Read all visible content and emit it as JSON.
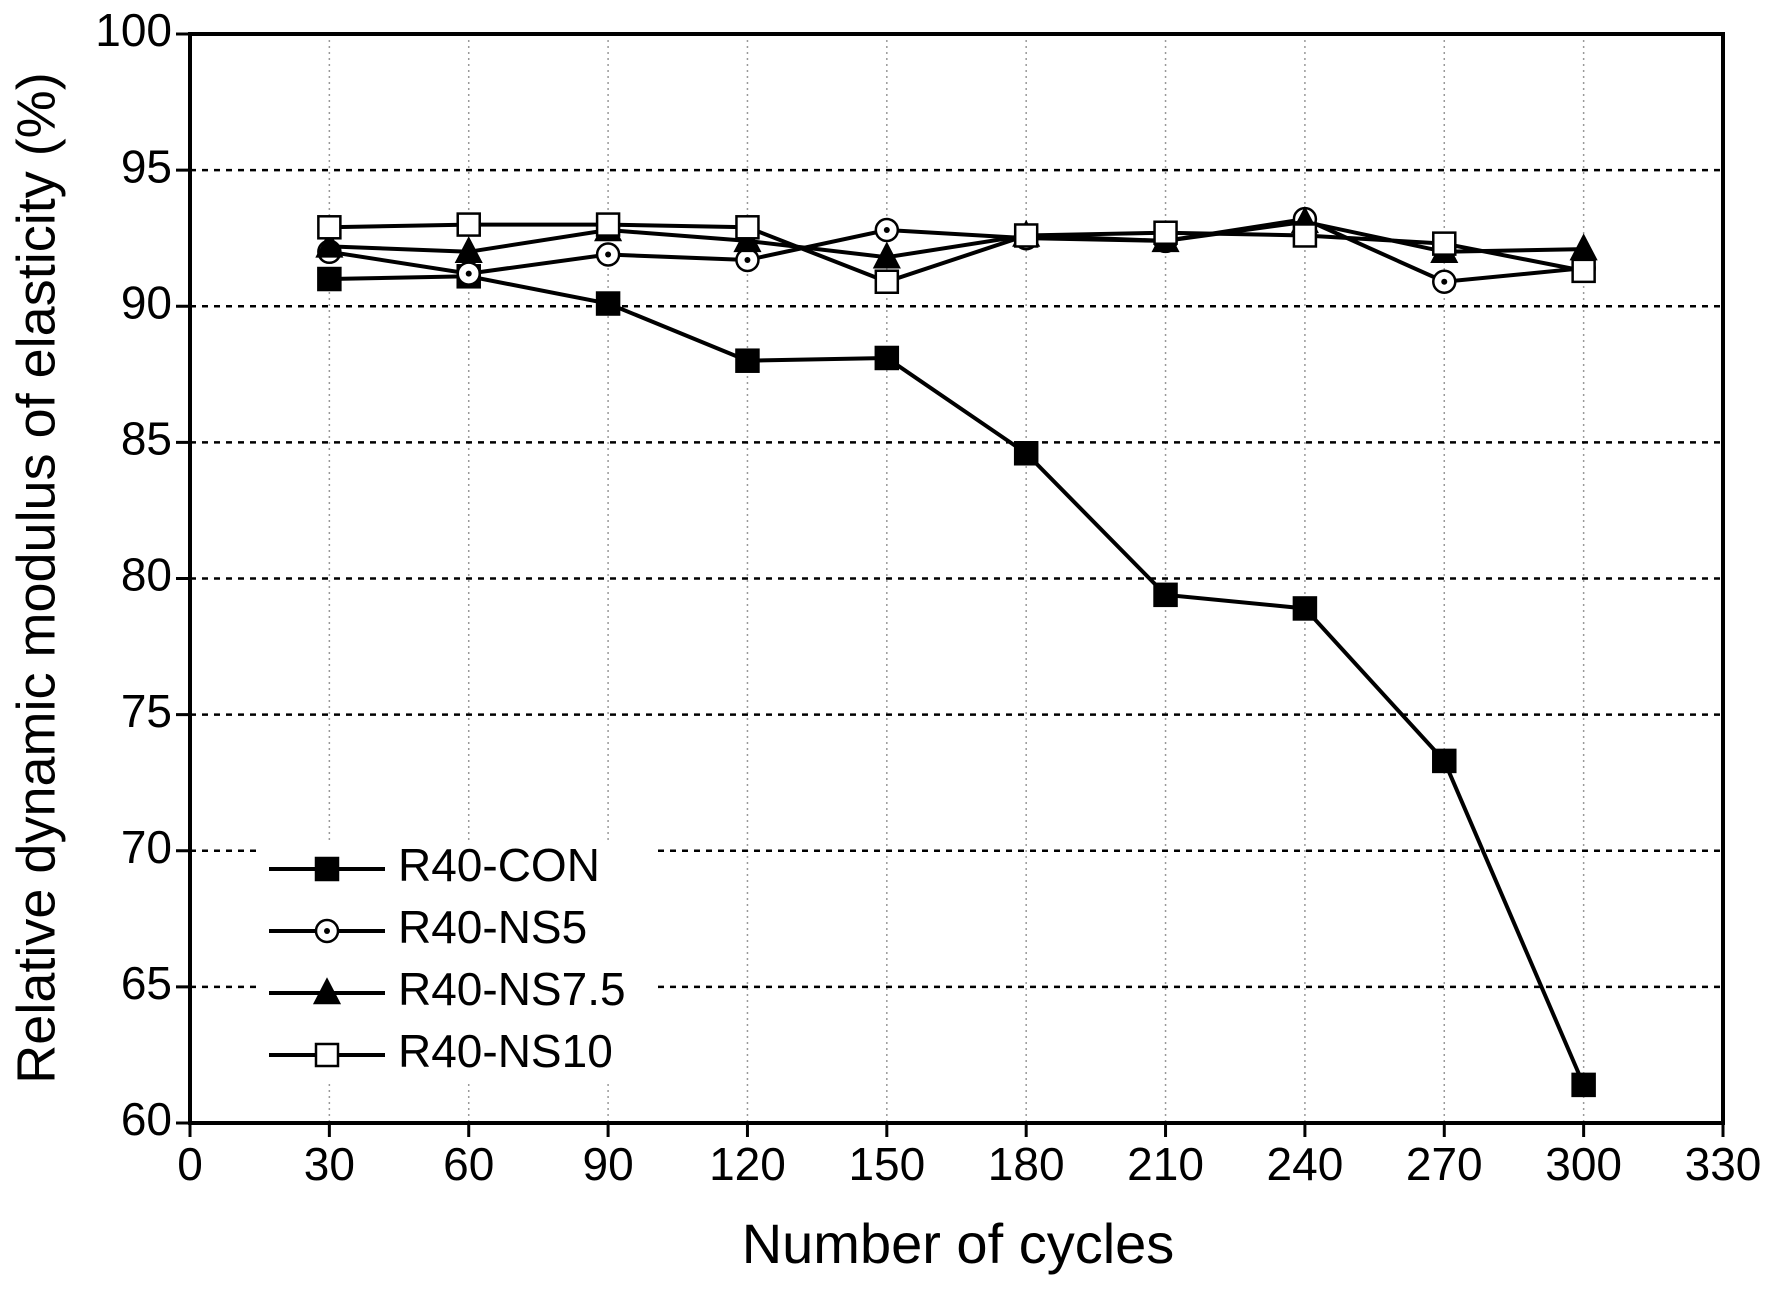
{
  "chart_data": {
    "type": "line",
    "x_label": "Number of cycles",
    "y_label": "Relative dynamic modulus of elasticity (%)",
    "x": [
      30,
      60,
      90,
      120,
      150,
      180,
      210,
      240,
      270,
      300
    ],
    "series": [
      {
        "name": "R40-CON",
        "color": "#000000",
        "marker": "square-filled",
        "values": [
          91.0,
          91.1,
          90.1,
          88.0,
          88.1,
          84.6,
          79.4,
          78.9,
          73.3,
          61.4
        ]
      },
      {
        "name": "R40-NS5",
        "color": "#000000",
        "marker": "circle-dot",
        "values": [
          92.0,
          91.2,
          91.9,
          91.7,
          92.8,
          92.5,
          92.4,
          93.2,
          90.9,
          91.4
        ]
      },
      {
        "name": "R40-NS7.5",
        "color": "#000000",
        "marker": "triangle-filled",
        "values": [
          92.2,
          92.0,
          92.8,
          92.4,
          91.8,
          92.6,
          92.4,
          93.1,
          92.0,
          92.1
        ]
      },
      {
        "name": "R40-NS10",
        "color": "#000000",
        "marker": "square-open",
        "values": [
          92.9,
          93.0,
          93.0,
          92.9,
          90.9,
          92.6,
          92.7,
          92.6,
          92.3,
          91.3
        ]
      }
    ],
    "xlim": [
      0,
      330
    ],
    "xticks": [
      0,
      30,
      60,
      90,
      120,
      150,
      180,
      210,
      240,
      270,
      300,
      330
    ],
    "ylim": [
      60,
      100
    ],
    "yticks": [
      60,
      65,
      70,
      75,
      80,
      85,
      90,
      95,
      100
    ],
    "grid": true,
    "legend": "lower left"
  }
}
